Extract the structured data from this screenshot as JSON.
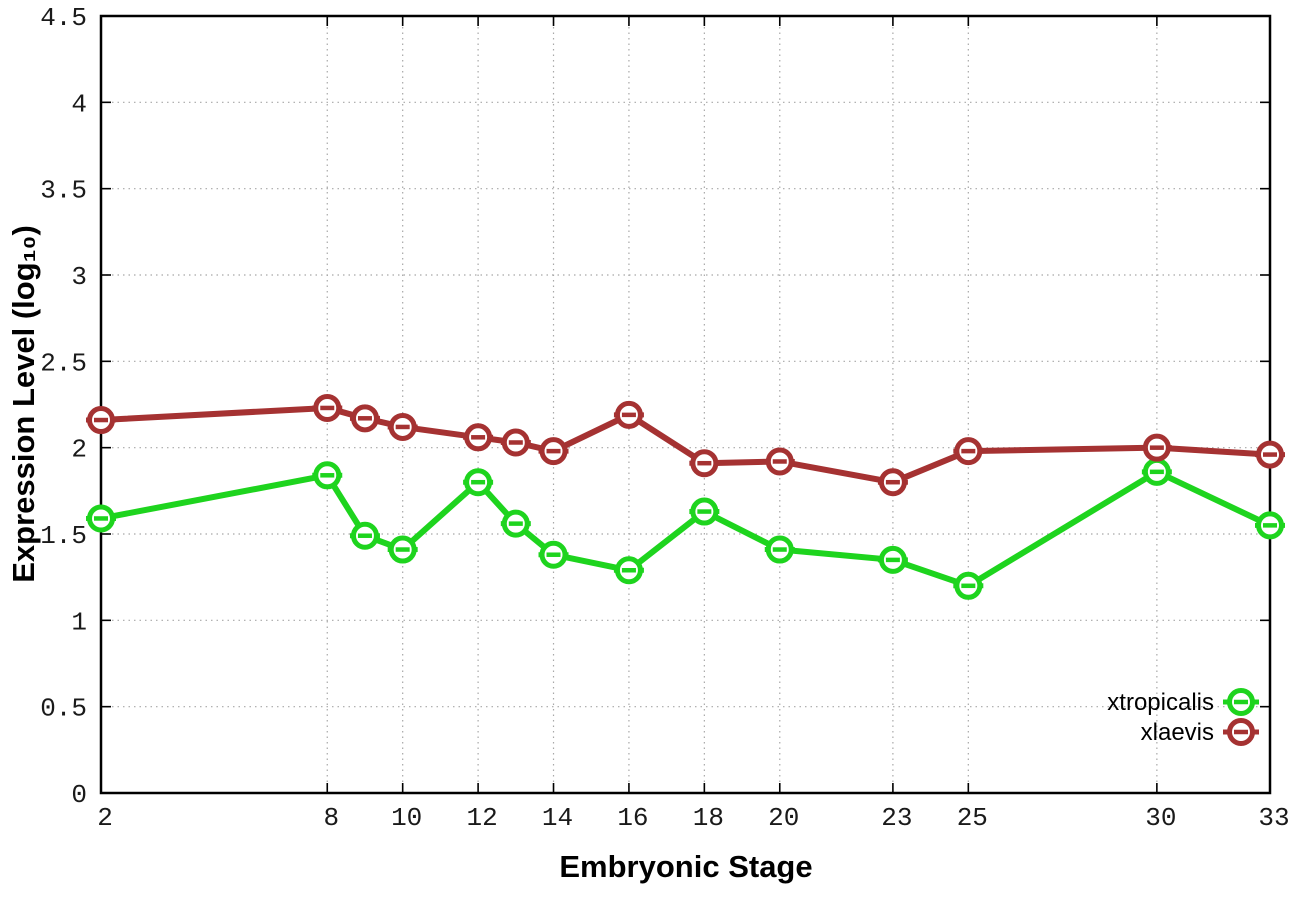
{
  "chart_data": {
    "type": "line",
    "title": "",
    "xlabel": "Embryonic Stage",
    "ylabel": "Expression Level (log₁₀)",
    "x": [
      2,
      8,
      9,
      10,
      12,
      13,
      14,
      16,
      18,
      20,
      23,
      25,
      30,
      33
    ],
    "xlim": [
      2,
      33
    ],
    "ylim": [
      0,
      4.5
    ],
    "xticks": [
      2,
      8,
      10,
      12,
      14,
      16,
      18,
      20,
      23,
      25,
      30,
      33
    ],
    "yticks": [
      0,
      0.5,
      1,
      1.5,
      2,
      2.5,
      3,
      3.5,
      4,
      4.5
    ],
    "grid": true,
    "grid_style": "dotted",
    "grid_color": "#a8a8a8",
    "border_color": "#000000",
    "legend_position": "inside-bottom-right",
    "series": [
      {
        "name": "xtropicalis",
        "color": "#1ed41e",
        "marker": "open-circle-with-dash",
        "values": [
          1.59,
          1.84,
          1.49,
          1.41,
          1.8,
          1.56,
          1.38,
          1.29,
          1.63,
          1.41,
          1.35,
          1.2,
          1.86,
          1.55
        ]
      },
      {
        "name": "xlaevis",
        "color": "#a53232",
        "marker": "open-circle-with-dash",
        "values": [
          2.16,
          2.23,
          2.17,
          2.12,
          2.06,
          2.03,
          1.98,
          2.19,
          1.91,
          1.92,
          1.8,
          1.98,
          2.0,
          1.96
        ]
      }
    ]
  }
}
